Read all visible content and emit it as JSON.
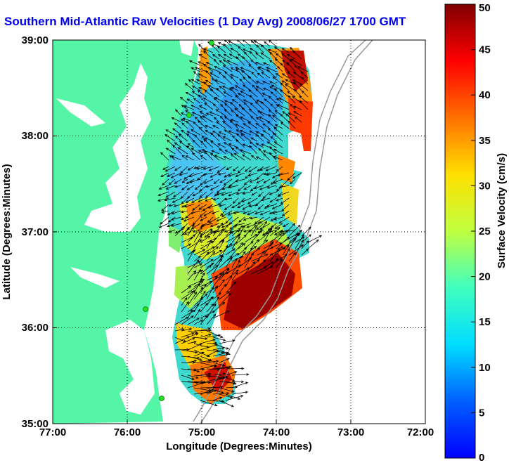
{
  "title": "Southern Mid-Atlantic Raw Velocities (1 Day Avg) 2008/06/27 1700 GMT",
  "x_axis": {
    "label": "Longitude (Degrees:Minutes)",
    "ticks": [
      "77:00",
      "76:00",
      "75:00",
      "74:00",
      "73:00",
      "72:00"
    ]
  },
  "y_axis": {
    "label": "Latitude (Degrees:Minutes)",
    "ticks": [
      "39:00",
      "38:00",
      "37:00",
      "36:00",
      "35:00"
    ]
  },
  "colorbar": {
    "label": "Surface Velocity (cm/s)",
    "min": 0,
    "max": 50,
    "ticks": [
      "0",
      "5",
      "10",
      "15",
      "20",
      "25",
      "30",
      "35",
      "40",
      "45",
      "50"
    ]
  },
  "colors": {
    "land": "#55f5a8",
    "title": "#0000ee",
    "stations": "#22dd22"
  },
  "grid": "dotted"
}
